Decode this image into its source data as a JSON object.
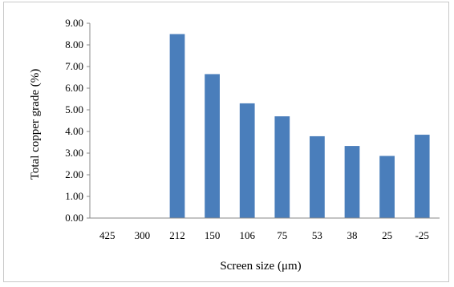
{
  "chart_data": {
    "type": "bar",
    "title": "",
    "xlabel": "Screen size (μm)",
    "ylabel": "Total copper grade (%)",
    "categories": [
      "425",
      "300",
      "212",
      "150",
      "106",
      "75",
      "53",
      "38",
      "25",
      "-25"
    ],
    "values": [
      0,
      0,
      8.5,
      6.65,
      5.3,
      4.7,
      3.78,
      3.33,
      2.87,
      3.85
    ],
    "ylim": [
      0,
      9
    ],
    "yticks": [
      "0.00",
      "1.00",
      "2.00",
      "3.00",
      "4.00",
      "5.00",
      "6.00",
      "7.00",
      "8.00",
      "9.00"
    ],
    "grid": false,
    "legend": "none",
    "bar_color": "#4a7ebb"
  }
}
